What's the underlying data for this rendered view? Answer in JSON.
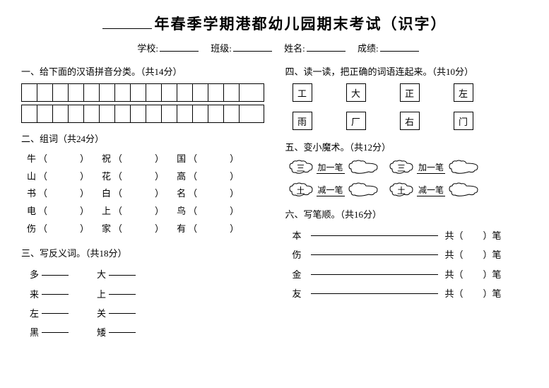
{
  "title_suffix": "年春季学期港都幼儿园期末考试（识字）",
  "info": {
    "school": "学校:",
    "class": "班级:",
    "name": "姓名:",
    "score": "成绩:"
  },
  "sec1": {
    "title": "一、给下面的汉语拼音分类。（共14分）",
    "grid_cols": 15
  },
  "sec2": {
    "title": "二、组词（共24分）",
    "rows": [
      [
        "牛",
        "祝",
        "国"
      ],
      [
        "山",
        "花",
        "高"
      ],
      [
        "书",
        "白",
        "名"
      ],
      [
        "电",
        "上",
        "鸟"
      ],
      [
        "伤",
        "家",
        "有"
      ]
    ]
  },
  "sec3": {
    "title": "三、写反义词。（共18分）",
    "rows": [
      [
        "多",
        "大"
      ],
      [
        "来",
        "上"
      ],
      [
        "左",
        "关"
      ],
      [
        "黑",
        "矮"
      ]
    ]
  },
  "sec4": {
    "title": "四、读一读，把正确的词语连起来。（共10分）",
    "row1": [
      "工",
      "大",
      "正",
      "左"
    ],
    "row2": [
      "雨",
      "厂",
      "右",
      "门"
    ]
  },
  "sec5": {
    "title": "五、变小魔术。（共12分）",
    "rows": [
      {
        "c1": "三",
        "l1": "加一笔",
        "c2": "三",
        "l2": "加一笔"
      },
      {
        "c1": "土",
        "l1": "减一笔",
        "c2": "土",
        "l2": "减一笔"
      }
    ]
  },
  "sec6": {
    "title": "六、写笔顺。（共16分）",
    "chars": [
      "本",
      "伤",
      "金",
      "友"
    ],
    "gong": "共",
    "bi": "笔"
  },
  "colors": {
    "bg": "#ffffff",
    "text": "#000000",
    "border": "#000000"
  }
}
